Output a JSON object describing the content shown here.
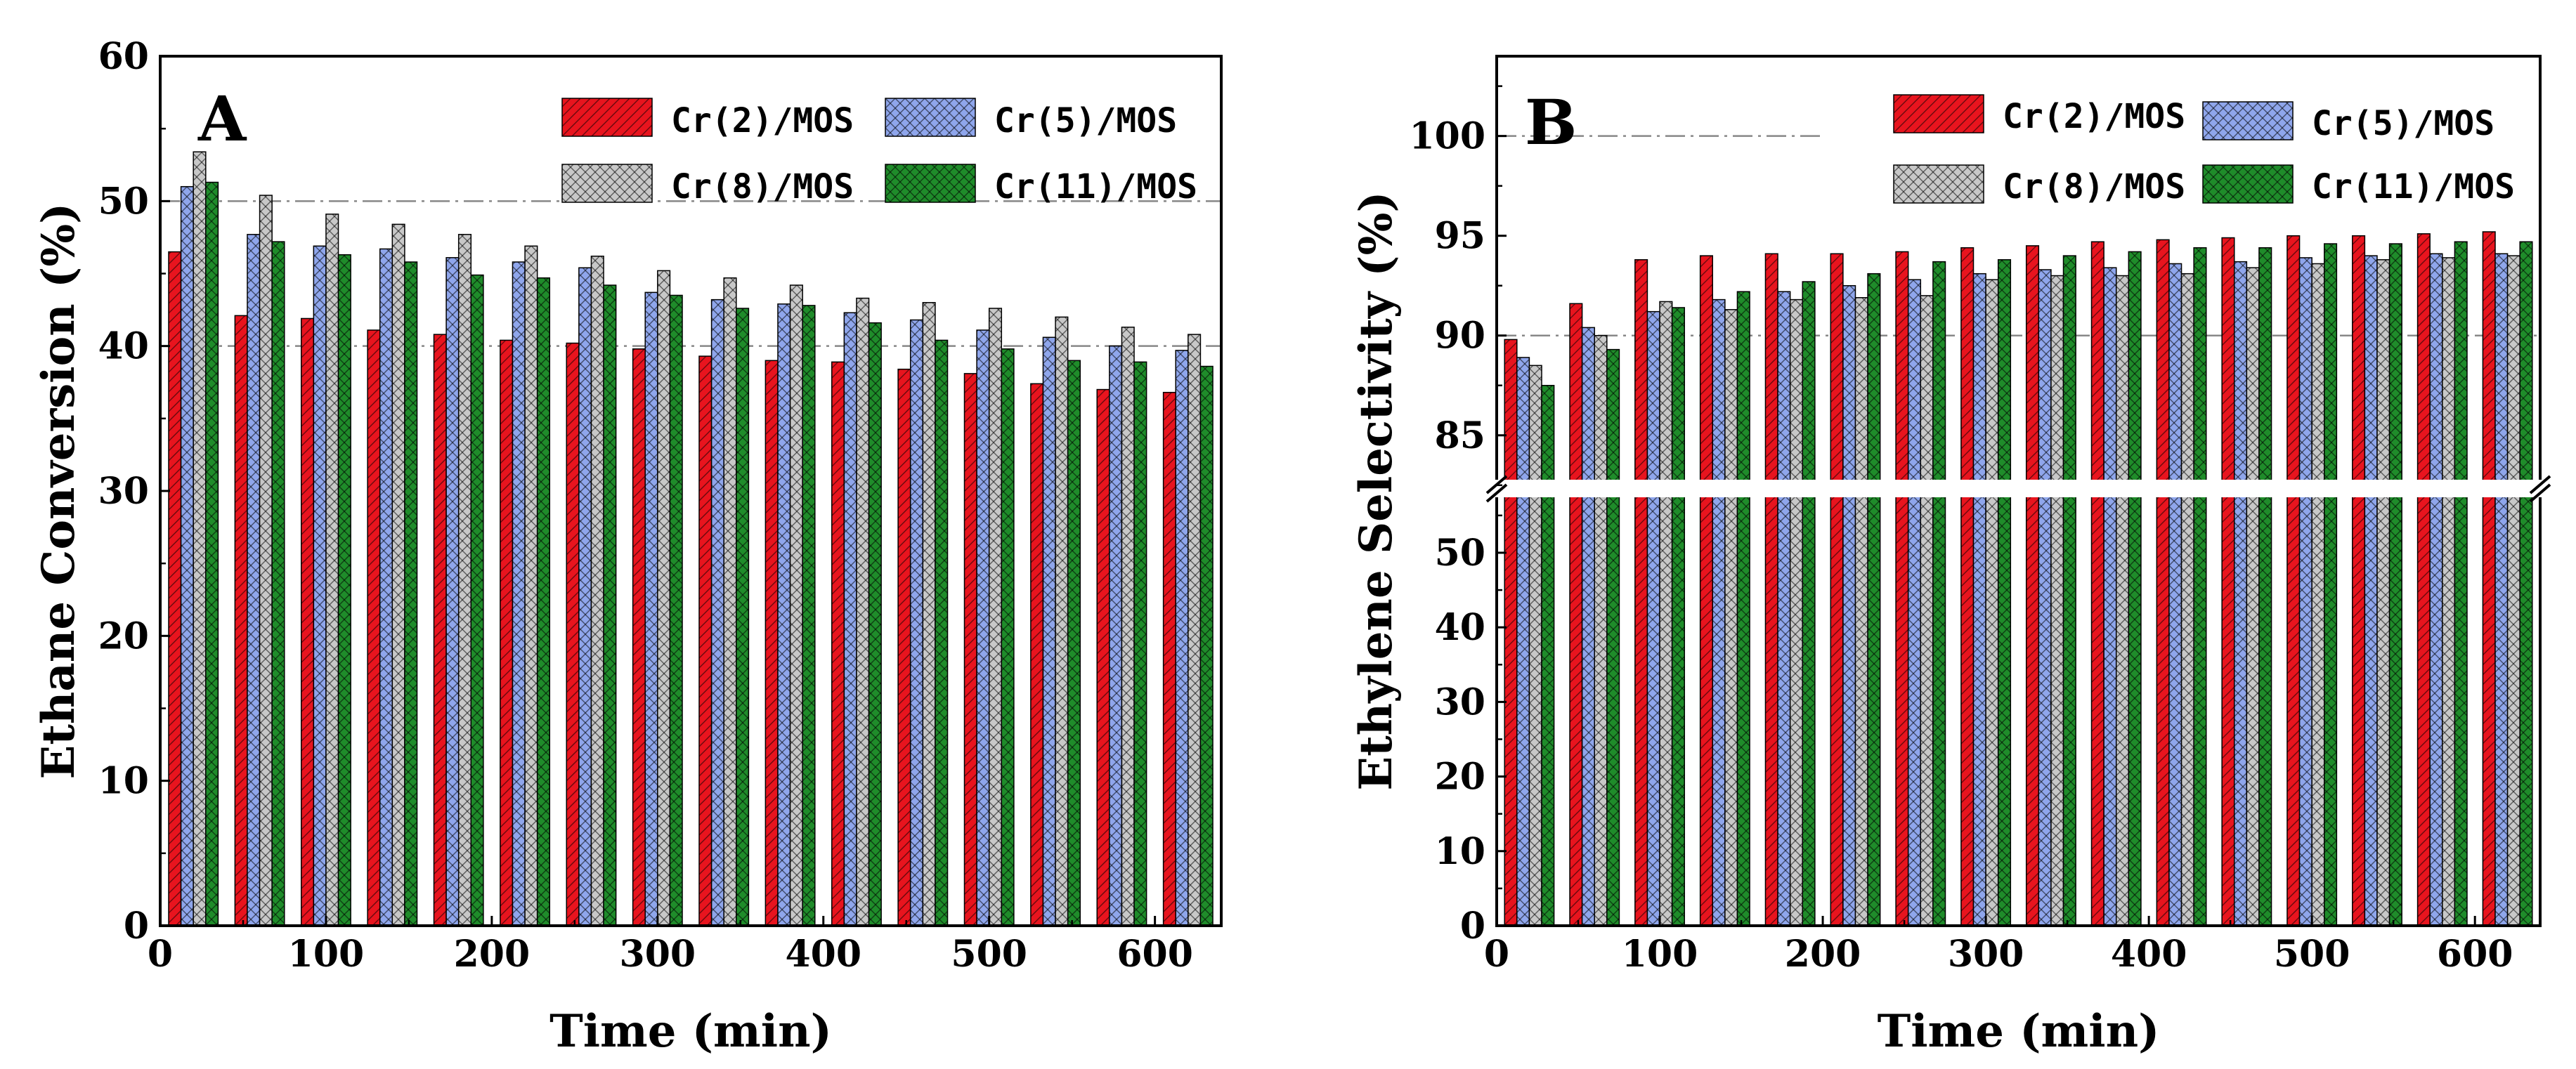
{
  "chart_data": [
    {
      "type": "bar",
      "panel_label": "A",
      "xlabel": "Time (min)",
      "ylabel": "Ethane Conversion (%)",
      "xlim": [
        0,
        640
      ],
      "ylim": [
        0,
        60
      ],
      "xticks": [
        0,
        100,
        200,
        300,
        400,
        500,
        600
      ],
      "yticks": [
        0,
        10,
        20,
        30,
        40,
        50,
        60
      ],
      "reference_lines": [
        40,
        50
      ],
      "legend_position": "top-right",
      "x": [
        20,
        60,
        100,
        140,
        180,
        220,
        260,
        300,
        340,
        380,
        420,
        460,
        500,
        540,
        580,
        620
      ],
      "series": [
        {
          "name": "Cr(2)/MOS",
          "color": "#e8141e",
          "hatch": "diag",
          "values": [
            46.5,
            42.1,
            41.9,
            41.1,
            40.8,
            40.4,
            40.2,
            39.8,
            39.3,
            39.0,
            38.9,
            38.4,
            38.1,
            37.4,
            37.0,
            36.8
          ]
        },
        {
          "name": "Cr(5)/MOS",
          "color": "#8fa6ec",
          "hatch": "cross",
          "values": [
            51.0,
            47.7,
            46.9,
            46.7,
            46.1,
            45.8,
            45.4,
            43.7,
            43.2,
            42.9,
            42.3,
            41.8,
            41.1,
            40.6,
            40.0,
            39.7
          ]
        },
        {
          "name": "Cr(8)/MOS",
          "color": "#c8c8c8",
          "hatch": "cross",
          "values": [
            53.4,
            50.4,
            49.1,
            48.4,
            47.7,
            46.9,
            46.2,
            45.2,
            44.7,
            44.2,
            43.3,
            43.0,
            42.6,
            42.0,
            41.3,
            40.8
          ]
        },
        {
          "name": "Cr(11)/MOS",
          "color": "#1f8c2a",
          "hatch": "cross",
          "values": [
            51.3,
            47.2,
            46.3,
            45.8,
            44.9,
            44.7,
            44.2,
            43.5,
            42.6,
            42.8,
            41.6,
            40.4,
            39.8,
            39.0,
            38.9,
            38.6
          ]
        }
      ]
    },
    {
      "type": "bar",
      "panel_label": "B",
      "xlabel": "Time (min)",
      "ylabel": "Ethylene Selectivity (%)",
      "xlim": [
        0,
        640
      ],
      "ylim": [
        0,
        104
      ],
      "axis_break": {
        "lower_range": [
          0,
          58
        ],
        "upper_range": [
          82,
          104
        ]
      },
      "xticks": [
        0,
        100,
        200,
        300,
        400,
        500,
        600
      ],
      "yticks_lower": [
        0,
        10,
        20,
        30,
        40,
        50
      ],
      "yticks_upper": [
        85,
        90,
        95,
        100
      ],
      "reference_lines": [
        90,
        100
      ],
      "legend_position": "top-right",
      "x": [
        20,
        60,
        100,
        140,
        180,
        220,
        260,
        300,
        340,
        380,
        420,
        460,
        500,
        540,
        580,
        620
      ],
      "series": [
        {
          "name": "Cr(2)/MOS",
          "color": "#e8141e",
          "hatch": "diag",
          "values": [
            89.8,
            91.6,
            93.8,
            94.0,
            94.1,
            94.1,
            94.2,
            94.4,
            94.5,
            94.7,
            94.8,
            94.9,
            95.0,
            95.0,
            95.1,
            95.2
          ]
        },
        {
          "name": "Cr(5)/MOS",
          "color": "#8fa6ec",
          "hatch": "cross",
          "values": [
            88.9,
            90.4,
            91.2,
            91.8,
            92.2,
            92.5,
            92.8,
            93.1,
            93.3,
            93.4,
            93.6,
            93.7,
            93.9,
            94.0,
            94.1,
            94.1
          ]
        },
        {
          "name": "Cr(8)/MOS",
          "color": "#c8c8c8",
          "hatch": "cross",
          "values": [
            88.5,
            90.0,
            91.7,
            91.3,
            91.8,
            91.9,
            92.0,
            92.8,
            93.0,
            93.0,
            93.1,
            93.4,
            93.6,
            93.8,
            93.9,
            94.0
          ]
        },
        {
          "name": "Cr(11)/MOS",
          "color": "#1f8c2a",
          "hatch": "cross",
          "values": [
            87.5,
            89.3,
            91.4,
            92.2,
            92.7,
            93.1,
            93.7,
            93.8,
            94.0,
            94.2,
            94.4,
            94.4,
            94.6,
            94.6,
            94.7,
            94.7
          ]
        }
      ]
    }
  ]
}
